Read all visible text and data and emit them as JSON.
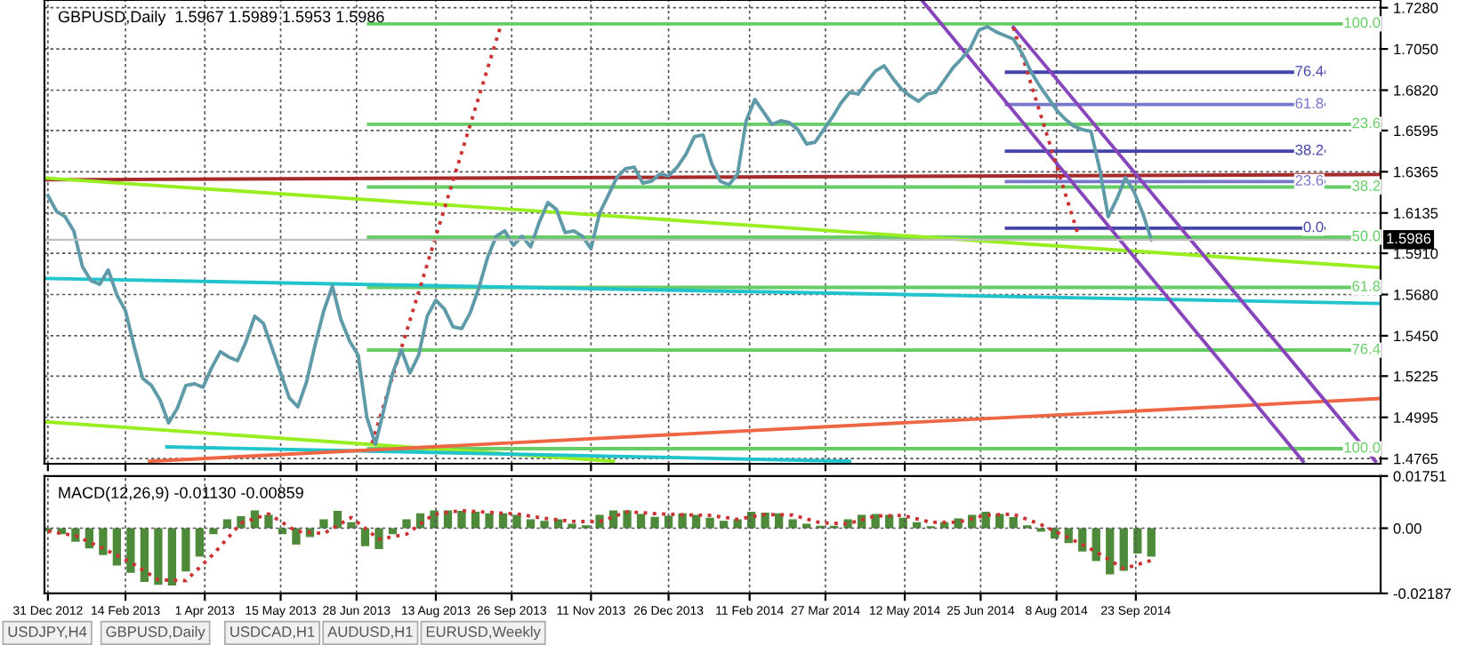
{
  "chart_data": [
    {
      "type": "line",
      "title": "GBPUSD,Daily  1.5967 1.5989 1.5953 1.5986",
      "xlim": [
        "2012-12-29",
        "2015-02-12"
      ],
      "ylim": [
        1.4736,
        1.7323
      ],
      "xticks": [
        {
          "value": "2012-12-31",
          "label": null
        },
        {
          "value": "2013-02-14",
          "label": null
        },
        {
          "value": "2013-04-01",
          "label": null
        },
        {
          "value": "2013-05-15",
          "label": null
        },
        {
          "value": "2013-06-28",
          "label": null
        },
        {
          "value": "2013-08-13",
          "label": null
        },
        {
          "value": "2013-09-26",
          "label": null
        },
        {
          "value": "2013-11-11",
          "label": null
        },
        {
          "value": "2013-12-26",
          "label": null
        },
        {
          "value": "2014-02-11",
          "label": null
        },
        {
          "value": "2014-03-27",
          "label": null
        },
        {
          "value": "2014-05-12",
          "label": null
        },
        {
          "value": "2014-06-25",
          "label": null
        },
        {
          "value": "2014-08-08",
          "label": null
        },
        {
          "value": "2014-09-23",
          "label": null
        }
      ],
      "yticks": [
        {
          "value": 1.728,
          "label": "1.7280"
        },
        {
          "value": 1.705,
          "label": "1.7050"
        },
        {
          "value": 1.682,
          "label": "1.6820"
        },
        1.6595,
        1.6365,
        1.6135,
        {
          "value": 1.591,
          "label": "1.5910"
        },
        {
          "value": 1.568,
          "label": "1.5680"
        },
        {
          "value": 1.545,
          "label": "1.5450"
        },
        1.5225,
        1.4995,
        1.4765
      ],
      "tick_labels": "y",
      "grid": true,
      "legend": false,
      "series": [
        {
          "type": "line",
          "color": "#66cc66",
          "name": "100.0",
          "x": [
            "2013-07-05",
            "2015-02-12"
          ],
          "values": [
            1.719,
            1.719
          ]
        },
        {
          "type": "line",
          "color": "#66cc66",
          "name": "23.6",
          "x": [
            "2013-07-05",
            "2015-02-12"
          ],
          "values": [
            1.663,
            1.663
          ]
        },
        {
          "type": "line",
          "color": "#66cc66",
          "name": "38.2",
          "x": [
            "2013-07-05",
            "2015-02-12"
          ],
          "values": [
            1.628,
            1.628
          ]
        },
        {
          "type": "line",
          "color": "#66cc66",
          "name": "50.0",
          "x": [
            "2013-07-05",
            "2015-02-12"
          ],
          "values": [
            1.6,
            1.6
          ]
        },
        {
          "type": "line",
          "color": "#66cc66",
          "name": "61.8",
          "x": [
            "2013-07-05",
            "2015-02-12"
          ],
          "values": [
            1.572,
            1.572
          ]
        },
        {
          "type": "line",
          "color": "#66cc66",
          "name": "76.4",
          "x": [
            "2013-07-05",
            "2015-02-12"
          ],
          "values": [
            1.537,
            1.537
          ]
        },
        {
          "type": "line",
          "color": "#66cc66",
          "name": "100.0",
          "x": [
            "2013-07-05",
            "2015-02-12"
          ],
          "values": [
            1.482,
            1.482
          ]
        },
        {
          "type": "line",
          "color": "#4444aa",
          "name": "76.4",
          "x": [
            "2014-07-10",
            "2015-01-10"
          ],
          "values": [
            1.692,
            1.692
          ]
        },
        {
          "type": "line",
          "color": "#7777cc",
          "name": "61.8",
          "x": [
            "2014-07-10",
            "2015-01-10"
          ],
          "values": [
            1.674,
            1.674
          ]
        },
        {
          "type": "line",
          "color": "#4444aa",
          "name": "38.2",
          "x": [
            "2014-07-10",
            "2015-01-10"
          ],
          "values": [
            1.648,
            1.648
          ]
        },
        {
          "type": "line",
          "color": "#7777cc",
          "name": "23.6",
          "x": [
            "2014-07-10",
            "2015-01-10"
          ],
          "values": [
            1.631,
            1.631
          ]
        },
        {
          "type": "line",
          "color": "#4444aa",
          "name": "0.0",
          "x": [
            "2014-07-10",
            "2015-01-10"
          ],
          "values": [
            1.605,
            1.605
          ]
        },
        {
          "type": "line",
          "color": "#a52a2a",
          "x": [
            "2012-12-29",
            "2015-02-12"
          ],
          "values": [
            1.632,
            1.635
          ]
        },
        {
          "type": "line",
          "color": "#99ee22",
          "x": [
            "2012-12-29",
            "2015-02-12"
          ],
          "values": [
            1.633,
            1.583
          ]
        },
        {
          "type": "line",
          "color": "#99ee22",
          "x": [
            "2012-12-29",
            "2013-11-24"
          ],
          "values": [
            1.497,
            1.475
          ]
        },
        {
          "type": "line",
          "color": "#22c4cc",
          "x": [
            "2012-12-29",
            "2015-02-12"
          ],
          "values": [
            1.577,
            1.563
          ]
        },
        {
          "type": "line",
          "color": "#22c4cc",
          "x": [
            "2013-03-10",
            "2014-04-10"
          ],
          "values": [
            1.483,
            1.475
          ]
        },
        {
          "type": "line",
          "color": "#ee6644",
          "x": [
            "2013-02-28",
            "2015-02-12"
          ],
          "values": [
            1.475,
            1.51
          ]
        },
        {
          "type": "line",
          "color": "#8844bb",
          "x": [
            "2014-05-22",
            "2014-12-29"
          ],
          "values": [
            1.732,
            1.475
          ]
        },
        {
          "type": "line",
          "color": "#8844bb",
          "x": [
            "2014-07-14",
            "2015-02-09"
          ],
          "values": [
            1.717,
            1.475
          ]
        },
        {
          "type": "line",
          "color": "#cc3333",
          "line_style": "dotted",
          "x": [
            "2013-07-07",
            "2013-09-20"
          ],
          "values": [
            1.485,
            1.719
          ]
        },
        {
          "type": "line",
          "color": "#cc3333",
          "line_style": "dotted",
          "x": [
            "2014-07-14",
            "2014-08-20"
          ],
          "values": [
            1.717,
            1.603
          ]
        },
        {
          "color": "#5f9aa8",
          "x": [
            "2012-12-31",
            "2013-01-05",
            "2013-01-10",
            "2013-01-15",
            "2013-01-20",
            "2013-01-25",
            "2013-01-30",
            "2013-02-04",
            "2013-02-09",
            "2013-02-14",
            "2013-02-19",
            "2013-02-24",
            "2013-03-01",
            "2013-03-06",
            "2013-03-11",
            "2013-03-16",
            "2013-03-21",
            "2013-03-26",
            "2013-03-31",
            "2013-04-05",
            "2013-04-10",
            "2013-04-15",
            "2013-04-20",
            "2013-04-25",
            "2013-04-30",
            "2013-05-05",
            "2013-05-10",
            "2013-05-15",
            "2013-05-20",
            "2013-05-25",
            "2013-05-30",
            "2013-06-04",
            "2013-06-09",
            "2013-06-14",
            "2013-06-19",
            "2013-06-24",
            "2013-06-29",
            "2013-07-04",
            "2013-07-09",
            "2013-07-14",
            "2013-07-19",
            "2013-07-24",
            "2013-07-29",
            "2013-08-03",
            "2013-08-08",
            "2013-08-13",
            "2013-08-18",
            "2013-08-23",
            "2013-08-28",
            "2013-09-02",
            "2013-09-07",
            "2013-09-12",
            "2013-09-17",
            "2013-09-22",
            "2013-09-27",
            "2013-10-02",
            "2013-10-07",
            "2013-10-12",
            "2013-10-17",
            "2013-10-22",
            "2013-10-27",
            "2013-11-01",
            "2013-11-06",
            "2013-11-11",
            "2013-11-16",
            "2013-11-21",
            "2013-11-26",
            "2013-12-01",
            "2013-12-06",
            "2013-12-11",
            "2013-12-16",
            "2013-12-21",
            "2013-12-26",
            "2013-12-31",
            "2014-01-05",
            "2014-01-10",
            "2014-01-15",
            "2014-01-20",
            "2014-01-25",
            "2014-01-30",
            "2014-02-04",
            "2014-02-09",
            "2014-02-14",
            "2014-02-19",
            "2014-02-24",
            "2014-03-01",
            "2014-03-06",
            "2014-03-11",
            "2014-03-16",
            "2014-03-21",
            "2014-03-26",
            "2014-03-31",
            "2014-04-05",
            "2014-04-10",
            "2014-04-15",
            "2014-04-20",
            "2014-04-25",
            "2014-04-30",
            "2014-05-05",
            "2014-05-10",
            "2014-05-15",
            "2014-05-20",
            "2014-05-25",
            "2014-05-30",
            "2014-06-04",
            "2014-06-09",
            "2014-06-14",
            "2014-06-19",
            "2014-06-24",
            "2014-06-29",
            "2014-07-04",
            "2014-07-09",
            "2014-07-14",
            "2014-07-19",
            "2014-07-24",
            "2014-07-29",
            "2014-08-03",
            "2014-08-08",
            "2014-08-13",
            "2014-08-18",
            "2014-08-23",
            "2014-08-28",
            "2014-09-02",
            "2014-09-07",
            "2014-09-12",
            "2014-09-17",
            "2014-09-22",
            "2014-09-27",
            "2014-10-02"
          ],
          "values": [
            1.6233,
            1.6144,
            1.6114,
            1.6035,
            1.5836,
            1.5757,
            1.5737,
            1.5817,
            1.5678,
            1.5589,
            1.5391,
            1.5212,
            1.5173,
            1.5093,
            1.4964,
            1.5044,
            1.5173,
            1.5182,
            1.5163,
            1.5272,
            1.5361,
            1.5331,
            1.5311,
            1.542,
            1.5559,
            1.5519,
            1.5381,
            1.5242,
            1.5103,
            1.5054,
            1.5192,
            1.54,
            1.5589,
            1.5727,
            1.5539,
            1.542,
            1.5341,
            1.4994,
            1.4845,
            1.5044,
            1.5242,
            1.5371,
            1.5242,
            1.5341,
            1.5559,
            1.5648,
            1.5599,
            1.55,
            1.549,
            1.5579,
            1.5718,
            1.5886,
            1.6005,
            1.6035,
            1.5955,
            1.6005,
            1.5946,
            1.6084,
            1.6193,
            1.6154,
            1.6025,
            1.6035,
            1.6005,
            1.5936,
            1.6134,
            1.6233,
            1.6332,
            1.6382,
            1.6391,
            1.6302,
            1.6312,
            1.6352,
            1.6342,
            1.6391,
            1.6461,
            1.656,
            1.657,
            1.6411,
            1.6312,
            1.6292,
            1.6352,
            1.6649,
            1.6768,
            1.6699,
            1.6629,
            1.6649,
            1.6639,
            1.66,
            1.652,
            1.653,
            1.66,
            1.6669,
            1.6748,
            1.6808,
            1.6798,
            1.6867,
            1.6927,
            1.6956,
            1.6887,
            1.6827,
            1.6788,
            1.6758,
            1.6798,
            1.6808,
            1.6877,
            1.6946,
            1.6996,
            1.7055,
            1.7155,
            1.7174,
            1.7145,
            1.7125,
            1.7105,
            1.7026,
            1.6927,
            1.6847,
            1.6778,
            1.6709,
            1.6659,
            1.6619,
            1.66,
            1.659,
            1.6382,
            1.6114,
            1.6213,
            1.6332,
            1.6253,
            1.6134,
            1.5986
          ]
        }
      ],
      "ref_lines": [
        {
          "axis": "y",
          "value": 1.5986,
          "label": "1.5986",
          "color": "#c0c0c0"
        }
      ]
    },
    {
      "type": "bar",
      "title": "MACD(12,26,9) -0.01130 -0.00859",
      "xlim": [
        "2012-12-29",
        "2015-02-12"
      ],
      "ylim": [
        -0.02187,
        0.01751
      ],
      "xticks": [
        {
          "value": "2012-12-31",
          "label": "31 Dec 2012"
        },
        {
          "value": "2013-02-14",
          "label": "14 Feb 2013"
        },
        {
          "value": "2013-04-01",
          "label": "1 Apr 2013"
        },
        {
          "value": "2013-05-15",
          "label": "15 May 2013"
        },
        {
          "value": "2013-06-28",
          "label": "28 Jun 2013"
        },
        {
          "value": "2013-08-13",
          "label": "13 Aug 2013"
        },
        {
          "value": "2013-09-26",
          "label": "26 Sep 2013"
        },
        {
          "value": "2013-11-11",
          "label": "11 Nov 2013"
        },
        {
          "value": "2013-12-26",
          "label": "26 Dec 2013"
        },
        {
          "value": "2014-02-11",
          "label": "11 Feb 2014"
        },
        {
          "value": "2014-03-27",
          "label": "27 Mar 2014"
        },
        {
          "value": "2014-05-12",
          "label": "12 May 2014"
        },
        {
          "value": "2014-06-25",
          "label": "25 Jun 2014"
        },
        {
          "value": "2014-08-08",
          "label": "8 Aug 2014"
        },
        {
          "value": "2014-09-23",
          "label": "23 Sep 2014"
        }
      ],
      "yticks": [
        0.01751,
        {
          "value": 0,
          "label": "0.00"
        },
        -0.02187
      ],
      "grid": true,
      "legend": false,
      "series": [
        {
          "color": "#4d8a3a",
          "x": [
            "2012-12-31",
            "2013-01-08",
            "2013-01-16",
            "2013-01-24",
            "2013-02-01",
            "2013-02-09",
            "2013-02-17",
            "2013-02-25",
            "2013-03-05",
            "2013-03-13",
            "2013-03-21",
            "2013-03-29",
            "2013-04-06",
            "2013-04-14",
            "2013-04-22",
            "2013-04-30",
            "2013-05-08",
            "2013-05-16",
            "2013-05-24",
            "2013-06-01",
            "2013-06-09",
            "2013-06-17",
            "2013-06-25",
            "2013-07-03",
            "2013-07-11",
            "2013-07-19",
            "2013-07-27",
            "2013-08-04",
            "2013-08-12",
            "2013-08-20",
            "2013-08-28",
            "2013-09-05",
            "2013-09-13",
            "2013-09-21",
            "2013-09-29",
            "2013-10-07",
            "2013-10-15",
            "2013-10-23",
            "2013-10-31",
            "2013-11-08",
            "2013-11-16",
            "2013-11-24",
            "2013-12-02",
            "2013-12-10",
            "2013-12-18",
            "2013-12-26",
            "2014-01-03",
            "2014-01-11",
            "2014-01-19",
            "2014-01-27",
            "2014-02-04",
            "2014-02-12",
            "2014-02-20",
            "2014-02-28",
            "2014-03-08",
            "2014-03-16",
            "2014-03-24",
            "2014-04-01",
            "2014-04-09",
            "2014-04-17",
            "2014-04-25",
            "2014-05-03",
            "2014-05-11",
            "2014-05-19",
            "2014-05-27",
            "2014-06-04",
            "2014-06-12",
            "2014-06-20",
            "2014-06-28",
            "2014-07-06",
            "2014-07-14",
            "2014-07-22",
            "2014-07-30",
            "2014-08-07",
            "2014-08-15",
            "2014-08-23",
            "2014-08-31",
            "2014-09-08",
            "2014-09-16",
            "2014-09-24",
            "2014-10-02"
          ],
          "values": [
            -0.001,
            -0.002,
            -0.0045,
            -0.0068,
            -0.009,
            -0.0125,
            -0.015,
            -0.018,
            -0.019,
            -0.0192,
            -0.0145,
            -0.0095,
            -0.002,
            0.003,
            0.004,
            0.006,
            0.0045,
            -0.002,
            -0.0055,
            -0.003,
            0.003,
            0.0058,
            0.002,
            -0.006,
            -0.007,
            -0.002,
            0.003,
            0.005,
            0.006,
            0.006,
            0.0058,
            0.0055,
            0.005,
            0.005,
            0.0045,
            0.003,
            0.0025,
            0.003,
            0.0015,
            0.001,
            0.0045,
            0.006,
            0.006,
            0.0048,
            0.0038,
            0.0042,
            0.005,
            0.0045,
            0.0035,
            0.0025,
            0.003,
            0.0055,
            0.0052,
            0.005,
            0.003,
            0.0015,
            0.0008,
            0.0008,
            0.003,
            0.0045,
            0.0048,
            0.0045,
            0.0035,
            0.002,
            0.0007,
            0.002,
            0.0033,
            0.0045,
            0.0055,
            0.0048,
            0.0037,
            0.001,
            -0.0012,
            -0.0035,
            -0.005,
            -0.0078,
            -0.011,
            -0.0155,
            -0.0143,
            -0.0085,
            -0.0095
          ]
        },
        {
          "type": "line",
          "color": "#cc3333",
          "line_style": "dotted",
          "x": [
            "2012-12-31",
            "2013-01-16",
            "2013-02-01",
            "2013-02-17",
            "2013-03-05",
            "2013-03-21",
            "2013-04-06",
            "2013-04-22",
            "2013-05-08",
            "2013-05-24",
            "2013-06-09",
            "2013-06-25",
            "2013-07-11",
            "2013-07-27",
            "2013-08-12",
            "2013-08-28",
            "2013-09-13",
            "2013-09-29",
            "2013-10-15",
            "2013-10-31",
            "2013-11-16",
            "2013-12-02",
            "2013-12-18",
            "2014-01-03",
            "2014-01-19",
            "2014-02-04",
            "2014-02-20",
            "2014-03-08",
            "2014-03-24",
            "2014-04-09",
            "2014-04-25",
            "2014-05-11",
            "2014-05-27",
            "2014-06-12",
            "2014-06-28",
            "2014-07-14",
            "2014-07-30",
            "2014-08-15",
            "2014-08-31",
            "2014-09-16",
            "2014-10-02"
          ],
          "values": [
            -0.001,
            -0.0025,
            -0.0068,
            -0.0114,
            -0.0173,
            -0.0176,
            -0.0087,
            0.0017,
            0.0048,
            -0.001,
            -0.0018,
            0.0036,
            -0.0037,
            -0.002,
            0.0047,
            0.0059,
            0.0053,
            0.0048,
            0.0033,
            0.0023,
            0.0022,
            0.0055,
            0.0049,
            0.0045,
            0.0043,
            0.003,
            0.0046,
            0.0044,
            0.0018,
            0.0015,
            0.0041,
            0.0043,
            0.002,
            0.002,
            0.0044,
            0.0047,
            0.0012,
            -0.0032,
            -0.0079,
            -0.0136,
            -0.0108
          ]
        }
      ],
      "annotations": [
        "USDJPY,H4",
        "GBPUSD,Daily",
        "USDCAD,H1",
        "AUDUSD,H1",
        "EURUSD,Weekly"
      ]
    }
  ]
}
